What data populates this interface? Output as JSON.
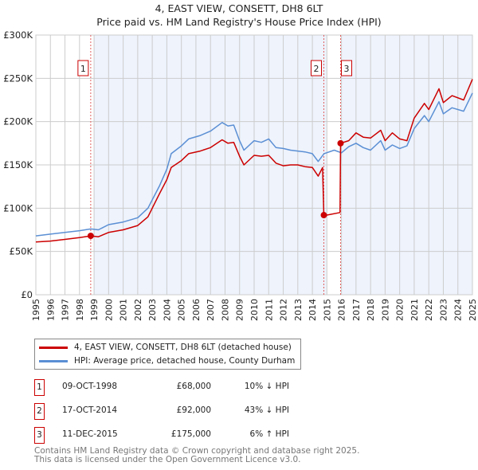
{
  "title": "4, EAST VIEW, CONSETT, DH8 6LT",
  "subtitle": "Price paid vs. HM Land Registry's House Price Index (HPI)",
  "colors": {
    "property": "#cc0000",
    "hpi": "#5b8fd4",
    "shade": "#eef3fc",
    "grid": "#cccccc"
  },
  "chart_data": {
    "type": "line",
    "title": "4, EAST VIEW, CONSETT, DH8 6LT",
    "xlim": [
      1995,
      2025
    ],
    "ylim": [
      0,
      300000
    ],
    "x_ticks": [
      1995,
      1996,
      1997,
      1998,
      1999,
      2000,
      2001,
      2002,
      2003,
      2004,
      2005,
      2006,
      2007,
      2008,
      2009,
      2010,
      2011,
      2012,
      2013,
      2014,
      2015,
      2016,
      2017,
      2018,
      2019,
      2020,
      2021,
      2022,
      2023,
      2024,
      2025
    ],
    "y_ticks": [
      {
        "v": 0,
        "label": "£0"
      },
      {
        "v": 50000,
        "label": "£50K"
      },
      {
        "v": 100000,
        "label": "£100K"
      },
      {
        "v": 150000,
        "label": "£150K"
      },
      {
        "v": 200000,
        "label": "£200K"
      },
      {
        "v": 250000,
        "label": "£250K"
      },
      {
        "v": 300000,
        "label": "£300K"
      }
    ],
    "grid": true,
    "shaded_ranges": [
      [
        1999,
        2015
      ],
      [
        2016,
        2025
      ]
    ],
    "series": [
      {
        "name": "4, EAST VIEW, CONSETT, DH8 6LT (detached house)",
        "color": "#cc0000",
        "x": [
          1995,
          1996,
          1997,
          1998,
          1998.77,
          1999.3,
          2000,
          2001,
          2002,
          2002.7,
          2003.5,
          2004,
          2004.3,
          2005,
          2005.5,
          2006.3,
          2007,
          2007.8,
          2008.2,
          2008.6,
          2009,
          2009.3,
          2010,
          2010.5,
          2011,
          2011.5,
          2012,
          2012.5,
          2013,
          2013.5,
          2014,
          2014.4,
          2014.7,
          2014.79,
          2015,
          2015.9,
          2015.94,
          2016.5,
          2017,
          2017.5,
          2018,
          2018.7,
          2019,
          2019.5,
          2020,
          2020.5,
          2021,
          2021.7,
          2022,
          2022.7,
          2023,
          2023.6,
          2024.4,
          2025
        ],
        "y": [
          61000,
          62000,
          64000,
          66000,
          68000,
          67000,
          72000,
          75000,
          80000,
          90000,
          117000,
          133000,
          147000,
          155000,
          163000,
          166000,
          170000,
          179000,
          175000,
          176000,
          160000,
          150000,
          161000,
          160000,
          161000,
          152000,
          149000,
          150000,
          150000,
          148000,
          147000,
          137000,
          147000,
          92000,
          92000,
          95000,
          175000,
          178000,
          187000,
          182000,
          181000,
          190000,
          178000,
          187000,
          180000,
          178000,
          204000,
          221000,
          214000,
          238000,
          222000,
          230000,
          225000,
          249000
        ]
      },
      {
        "name": "HPI: Average price, detached house, County Durham",
        "color": "#5b8fd4",
        "x": [
          1995,
          1996,
          1997,
          1998,
          1998.77,
          1999.3,
          2000,
          2001,
          2002,
          2002.7,
          2003.5,
          2004,
          2004.3,
          2005,
          2005.5,
          2006.3,
          2007,
          2007.8,
          2008.2,
          2008.6,
          2009,
          2009.3,
          2010,
          2010.5,
          2011,
          2011.5,
          2012,
          2012.5,
          2013,
          2013.5,
          2014,
          2014.4,
          2014.8,
          2015.5,
          2016,
          2016.5,
          2017,
          2017.5,
          2018,
          2018.7,
          2019,
          2019.5,
          2020,
          2020.5,
          2021,
          2021.7,
          2022,
          2022.7,
          2023,
          2023.6,
          2024.4,
          2025
        ],
        "y": [
          68000,
          70000,
          72000,
          74000,
          76000,
          75000,
          81000,
          84000,
          89000,
          100000,
          126000,
          145000,
          163000,
          172000,
          180000,
          184000,
          189000,
          199000,
          195000,
          196000,
          178000,
          167000,
          178000,
          176000,
          180000,
          170000,
          169000,
          167000,
          166000,
          165000,
          163000,
          154000,
          163000,
          167000,
          164000,
          171000,
          175000,
          170000,
          167000,
          178000,
          167000,
          173000,
          169000,
          172000,
          192000,
          207000,
          200000,
          223000,
          209000,
          216000,
          212000,
          233000
        ]
      }
    ],
    "sales": [
      {
        "num": "1",
        "x": 1998.77,
        "y": 68000
      },
      {
        "num": "2",
        "x": 2014.79,
        "y": 92000
      },
      {
        "num": "3",
        "x": 2015.94,
        "y": 175000
      }
    ]
  },
  "legend": {
    "property_label": "4, EAST VIEW, CONSETT, DH8 6LT (detached house)",
    "hpi_label": "HPI: Average price, detached house, County Durham"
  },
  "transactions": [
    {
      "num": "1",
      "date": "09-OCT-1998",
      "price": "£68,000",
      "hpi": "10% ↓ HPI"
    },
    {
      "num": "2",
      "date": "17-OCT-2014",
      "price": "£92,000",
      "hpi": "43% ↓ HPI"
    },
    {
      "num": "3",
      "date": "11-DEC-2015",
      "price": "£175,000",
      "hpi": "6% ↑ HPI"
    }
  ],
  "footer": {
    "line1": "Contains HM Land Registry data © Crown copyright and database right 2025.",
    "line2": "This data is licensed under the Open Government Licence v3.0."
  }
}
